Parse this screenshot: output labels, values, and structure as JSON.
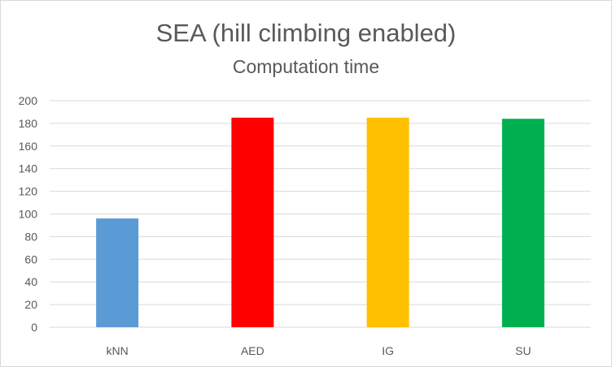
{
  "chart_data": {
    "type": "bar",
    "title": "SEA (hill climbing enabled)",
    "subtitle": "Computation time",
    "xlabel": "",
    "ylabel": "",
    "categories": [
      "kNN",
      "AED",
      "IG",
      "SU"
    ],
    "values": [
      96,
      185,
      185,
      184
    ],
    "colors": [
      "#5b9bd5",
      "#ff0000",
      "#ffc000",
      "#00b050"
    ],
    "ylim": [
      0,
      200
    ],
    "yticks": [
      0,
      20,
      40,
      60,
      80,
      100,
      120,
      140,
      160,
      180,
      200
    ],
    "grid": true,
    "legend": "none"
  }
}
